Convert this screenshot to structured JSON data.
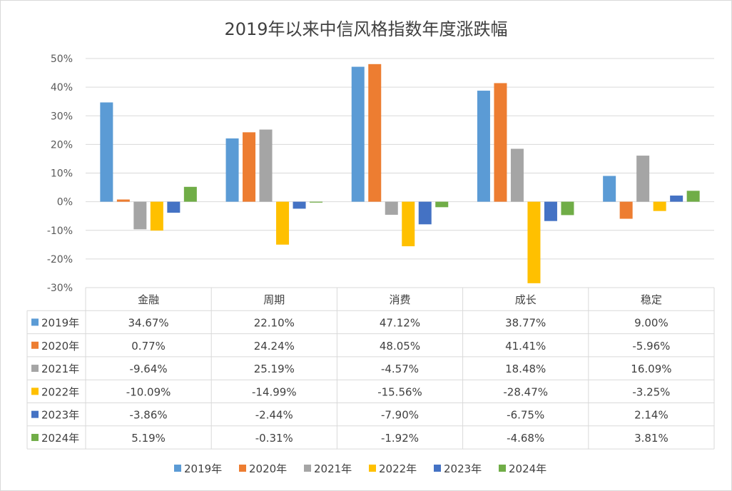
{
  "chart_data": {
    "type": "bar",
    "title": "2019年以来中信风格指数年度涨跌幅",
    "categories": [
      "金融",
      "周期",
      "消费",
      "成长",
      "稳定"
    ],
    "ylim": [
      -30,
      50
    ],
    "yticks": [
      50,
      40,
      30,
      20,
      10,
      0,
      -10,
      -20,
      -30
    ],
    "ytick_labels": [
      "50%",
      "40%",
      "30%",
      "20%",
      "10%",
      "0%",
      "-10%",
      "-20%",
      "-30%"
    ],
    "grid": true,
    "legend": "bottom",
    "data_table": true,
    "series": [
      {
        "name": "2019年",
        "color": "#5b9bd5",
        "values": [
          34.67,
          22.1,
          47.12,
          38.77,
          9.0
        ],
        "labels": [
          "34.67%",
          "22.10%",
          "47.12%",
          "38.77%",
          "9.00%"
        ]
      },
      {
        "name": "2020年",
        "color": "#ed7d31",
        "values": [
          0.77,
          24.24,
          48.05,
          41.41,
          -5.96
        ],
        "labels": [
          "0.77%",
          "24.24%",
          "48.05%",
          "41.41%",
          "-5.96%"
        ]
      },
      {
        "name": "2021年",
        "color": "#a5a5a5",
        "values": [
          -9.64,
          25.19,
          -4.57,
          18.48,
          16.09
        ],
        "labels": [
          "-9.64%",
          "25.19%",
          "-4.57%",
          "18.48%",
          "16.09%"
        ]
      },
      {
        "name": "2022年",
        "color": "#ffc000",
        "values": [
          -10.09,
          -14.99,
          -15.56,
          -28.47,
          -3.25
        ],
        "labels": [
          "-10.09%",
          "-14.99%",
          "-15.56%",
          "-28.47%",
          "-3.25%"
        ]
      },
      {
        "name": "2023年",
        "color": "#4472c4",
        "values": [
          -3.86,
          -2.44,
          -7.9,
          -6.75,
          2.14
        ],
        "labels": [
          "-3.86%",
          "-2.44%",
          "-7.90%",
          "-6.75%",
          "2.14%"
        ]
      },
      {
        "name": "2024年",
        "color": "#70ad47",
        "values": [
          5.19,
          -0.31,
          -1.92,
          -4.68,
          3.81
        ],
        "labels": [
          "5.19%",
          "-0.31%",
          "-1.92%",
          "-4.68%",
          "3.81%"
        ]
      }
    ]
  }
}
